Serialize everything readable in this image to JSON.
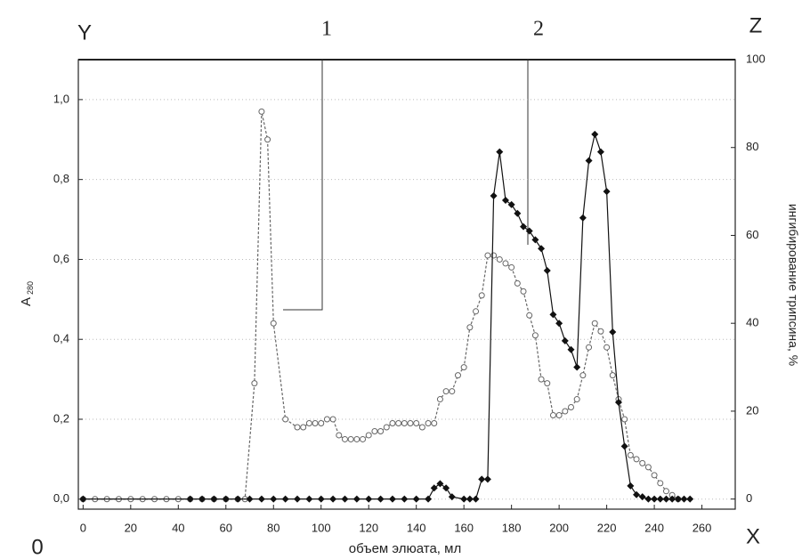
{
  "chart_data": {
    "type": "line",
    "xlabel": "объем элюата, мл",
    "ylabel": "A",
    "ylabel_subscript": "280",
    "y2label": "ингибирование трипсина, %",
    "axis_letters": {
      "y": "Y",
      "y2": "Z",
      "x": "X",
      "origin": "0"
    },
    "annotations": [
      "1",
      "2"
    ],
    "xlim": [
      -2,
      274
    ],
    "xticks": [
      0,
      20,
      40,
      60,
      80,
      100,
      120,
      140,
      160,
      180,
      200,
      220,
      240,
      260
    ],
    "ylim": [
      -0.025,
      1.1
    ],
    "yticks": [
      {
        "value": 0,
        "label": "0,0"
      },
      {
        "value": 0.2,
        "label": "0,2"
      },
      {
        "value": 0.4,
        "label": "0,4"
      },
      {
        "value": 0.6,
        "label": "0,6"
      },
      {
        "value": 0.8,
        "label": "0,8"
      },
      {
        "value": 1.0,
        "label": "1,0"
      }
    ],
    "y2lim": [
      -2.3,
      100
    ],
    "y2ticks": [
      0,
      20,
      40,
      60,
      80,
      100
    ],
    "grid": true,
    "series": [
      {
        "color": "#666666",
        "marker": "circle",
        "dashed": true,
        "x": [
          0,
          5,
          10,
          15,
          20,
          25,
          30,
          35,
          40,
          45,
          50,
          55,
          60,
          65,
          68,
          72,
          75,
          77.5,
          80,
          85,
          90,
          92.5,
          95,
          97.5,
          100,
          102.5,
          105,
          107.5,
          110,
          112.5,
          115,
          117.5,
          120,
          122.5,
          125,
          127.5,
          130,
          132.5,
          135,
          137.5,
          140,
          142.5,
          145,
          147.5,
          150,
          152.5,
          155,
          157.5,
          160,
          162.5,
          165,
          167.5,
          170,
          172.5,
          175,
          177.5,
          180,
          182.5,
          185,
          187.5,
          190,
          192.5,
          195,
          197.5,
          200,
          202.5,
          205,
          207.5,
          210,
          212.5,
          215,
          217.5,
          220,
          222.5,
          225,
          227.5,
          230,
          232.5,
          235,
          237.5,
          240,
          242.5,
          245,
          247.5,
          250
        ],
        "values": [
          0,
          0,
          0,
          0,
          0,
          0,
          0,
          0,
          0,
          0,
          0,
          0,
          0,
          0,
          0,
          0.29,
          0.97,
          0.9,
          0.44,
          0.2,
          0.18,
          0.18,
          0.19,
          0.19,
          0.19,
          0.2,
          0.2,
          0.16,
          0.15,
          0.15,
          0.15,
          0.15,
          0.16,
          0.17,
          0.17,
          0.18,
          0.19,
          0.19,
          0.19,
          0.19,
          0.19,
          0.18,
          0.19,
          0.19,
          0.25,
          0.27,
          0.27,
          0.31,
          0.33,
          0.43,
          0.47,
          0.51,
          0.61,
          0.61,
          0.6,
          0.59,
          0.58,
          0.54,
          0.52,
          0.46,
          0.41,
          0.3,
          0.29,
          0.21,
          0.21,
          0.22,
          0.23,
          0.25,
          0.31,
          0.38,
          0.44,
          0.42,
          0.38,
          0.31,
          0.25,
          0.2,
          0.11,
          0.1,
          0.09,
          0.08,
          0.06,
          0.04,
          0.02,
          0.01,
          0
        ]
      },
      {
        "color": "#111111",
        "marker": "diamond",
        "dashed": false,
        "axis": "y2",
        "x": [
          0,
          45,
          50,
          55,
          60,
          65,
          70,
          75,
          80,
          85,
          90,
          95,
          100,
          105,
          110,
          115,
          120,
          125,
          130,
          135,
          140,
          145,
          147.5,
          150,
          152.5,
          155,
          160,
          162.5,
          165,
          167.5,
          170,
          172.5,
          175,
          177.5,
          180,
          182.5,
          185,
          187.5,
          190,
          192.5,
          195,
          197.5,
          200,
          202.5,
          205,
          207.5,
          210,
          212.5,
          215,
          217.5,
          220,
          222.5,
          225,
          227.5,
          230,
          232.5,
          235,
          237.5,
          240,
          242.5,
          245,
          247.5,
          250,
          252.5,
          255
        ],
        "values": [
          0,
          0,
          0,
          0,
          0,
          0,
          0,
          0,
          0,
          0,
          0,
          0,
          0,
          0,
          0,
          0,
          0,
          0,
          0,
          0,
          0,
          0,
          2.5,
          3.5,
          2.5,
          0.5,
          0,
          0,
          0,
          4.5,
          4.5,
          69,
          79,
          68,
          67,
          65,
          62,
          61,
          59,
          57,
          52,
          42,
          40,
          36,
          34,
          30,
          64,
          77,
          83,
          79,
          70,
          38,
          22,
          12,
          3,
          1,
          0.5,
          0,
          0,
          0,
          0,
          0,
          0,
          0,
          0
        ]
      }
    ]
  }
}
